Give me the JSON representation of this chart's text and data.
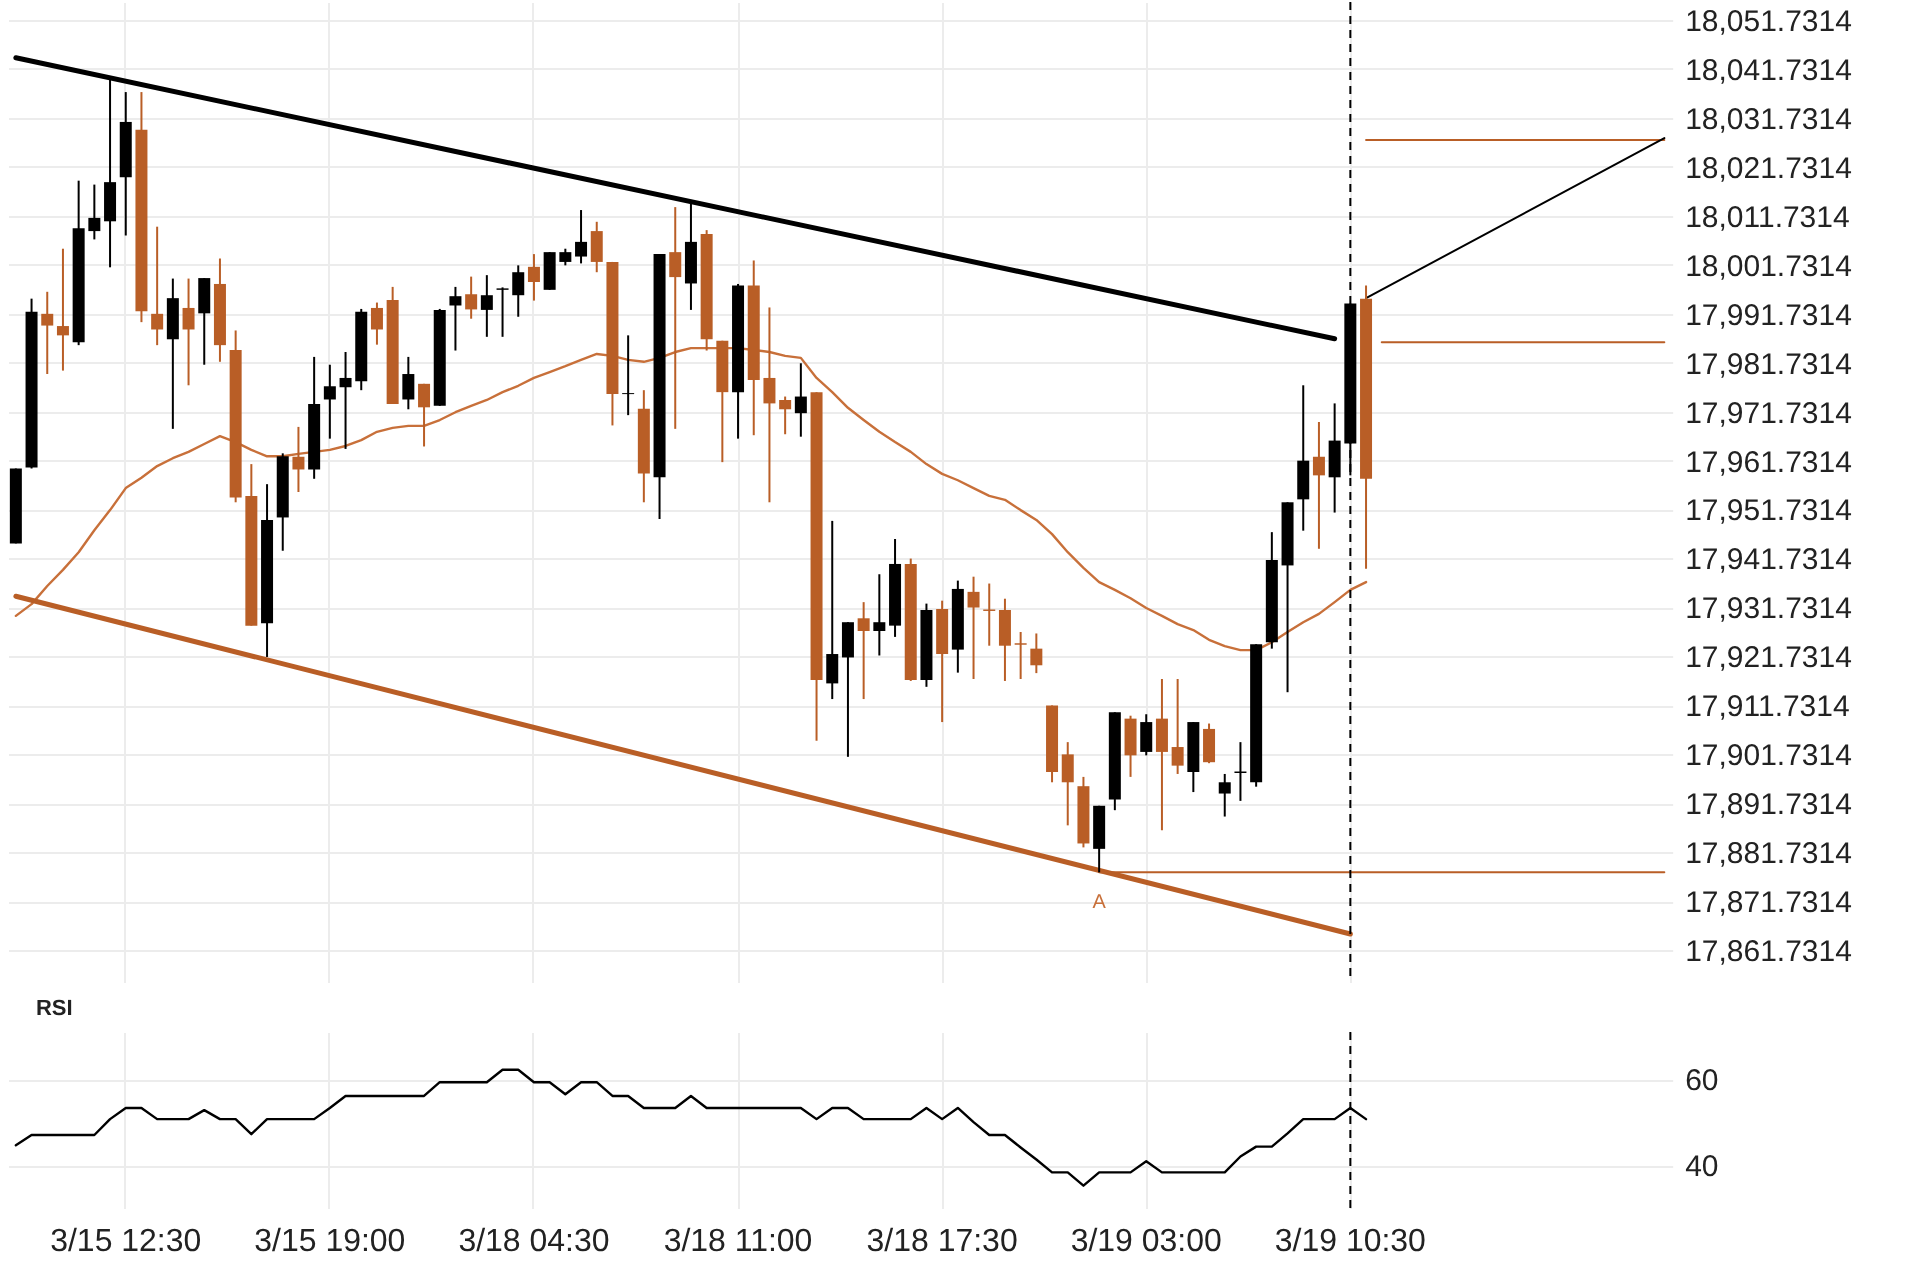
{
  "chart_data": [
    {
      "type": "candlestick",
      "categories": [
        null,
        null,
        null,
        null,
        null,
        null,
        null,
        "3/15 12:30",
        null,
        null,
        null,
        null,
        null,
        null,
        null,
        null,
        null,
        null,
        null,
        null,
        "3/15 19:00",
        null,
        null,
        null,
        null,
        null,
        null,
        null,
        null,
        null,
        null,
        null,
        null,
        "3/18 04:30",
        null,
        null,
        null,
        null,
        null,
        null,
        null,
        null,
        null,
        null,
        null,
        null,
        "3/18 11:00",
        null,
        null,
        null,
        null,
        null,
        null,
        null,
        null,
        null,
        null,
        null,
        null,
        "3/18 17:30",
        null,
        null,
        null,
        null,
        null,
        null,
        null,
        null,
        null,
        null,
        null,
        null,
        "3/19 03:00",
        null,
        null,
        null,
        null,
        null,
        null,
        null,
        null,
        null,
        null,
        null,
        null,
        "3/19 10:30",
        null,
        null,
        null,
        null,
        null,
        null,
        null,
        null,
        null,
        null,
        null,
        null,
        null,
        null,
        null,
        null,
        null,
        null,
        null,
        null
      ],
      "ohlc": [
        [
          17944.8,
          17960.1,
          17944.8,
          17960.1
        ],
        [
          17960.3,
          17994.8,
          17960.1,
          17992.1
        ],
        [
          17991.7,
          17996.2,
          17979.4,
          17989.3
        ],
        [
          17989.2,
          18005.0,
          17980.1,
          17987.3
        ],
        [
          17985.9,
          18018.9,
          17985.3,
          18009.2
        ],
        [
          18008.6,
          18018.1,
          18006.9,
          18011.3
        ],
        [
          18010.6,
          18040.2,
          18001.2,
          18018.6
        ],
        [
          18019.6,
          18037.0,
          18007.7,
          18030.9
        ],
        [
          18029.3,
          18037.0,
          17990.0,
          17992.2
        ],
        [
          17991.7,
          18009.5,
          17985.3,
          17988.5
        ],
        [
          17986.5,
          17998.9,
          17968.2,
          17994.9
        ],
        [
          17992.9,
          17998.9,
          17977.1,
          17988.5
        ],
        [
          17991.8,
          17999.0,
          17981.3,
          17999.0
        ],
        [
          17997.8,
          18003.0,
          17981.9,
          17985.3
        ],
        [
          17984.3,
          17988.3,
          17953.2,
          17954.2
        ],
        [
          17954.5,
          17961.0,
          17928.0,
          17928.0
        ],
        [
          17928.5,
          17956.9,
          17921.6,
          17949.6
        ],
        [
          17950.1,
          17963.2,
          17943.3,
          17962.6
        ],
        [
          17962.5,
          17968.6,
          17955.3,
          17959.9
        ],
        [
          17959.9,
          17982.9,
          17958.0,
          17973.3
        ],
        [
          17974.2,
          17981.3,
          17966.2,
          17976.9
        ],
        [
          17976.7,
          17983.9,
          17964.1,
          17978.6
        ],
        [
          17977.9,
          17992.7,
          17976.1,
          17992.1
        ],
        [
          17992.9,
          17994.0,
          17985.4,
          17988.5
        ],
        [
          17994.5,
          17997.2,
          17973.3,
          17973.3
        ],
        [
          17974.2,
          17982.9,
          17972.2,
          17979.4
        ],
        [
          17977.4,
          17977.4,
          17964.6,
          17972.6
        ],
        [
          17972.9,
          17992.7,
          17972.9,
          17992.5
        ],
        [
          17993.4,
          17997.2,
          17984.2,
          17995.3
        ],
        [
          17995.7,
          17999.3,
          17990.7,
          17992.6
        ],
        [
          17992.5,
          17999.6,
          17987.0,
          17995.5
        ],
        [
          17996.6,
          17997.1,
          17987.0,
          17996.9
        ],
        [
          17995.5,
          18001.6,
          17991.1,
          18000.2
        ],
        [
          18001.3,
          18003.9,
          17994.4,
          17998.2
        ],
        [
          17996.6,
          18004.3,
          17996.6,
          18004.3
        ],
        [
          18002.3,
          18005.0,
          18001.6,
          18004.3
        ],
        [
          18003.4,
          18012.9,
          18002.0,
          18006.4
        ],
        [
          18008.6,
          18010.5,
          18000.2,
          18002.3
        ],
        [
          18002.3,
          18002.3,
          17968.9,
          17975.3
        ],
        [
          17975.3,
          17987.3,
          17971.0,
          17975.5
        ],
        [
          17972.3,
          17976.1,
          17953.2,
          17959.1
        ],
        [
          17958.3,
          18003.9,
          17949.8,
          18003.9
        ],
        [
          18004.3,
          18013.5,
          17968.2,
          17999.2
        ],
        [
          17997.9,
          18014.5,
          17992.5,
          18006.4
        ],
        [
          18008.0,
          18008.8,
          17984.2,
          17986.5
        ],
        [
          17986.2,
          17986.2,
          17961.4,
          17975.7
        ],
        [
          17975.7,
          17997.8,
          17966.2,
          17997.5
        ],
        [
          17997.5,
          18002.6,
          17966.9,
          17978.2
        ],
        [
          17978.6,
          17993.0,
          17953.2,
          17973.4
        ],
        [
          17974.1,
          17974.8,
          17967.1,
          17972.2
        ],
        [
          17971.4,
          17981.6,
          17966.6,
          17974.8
        ],
        [
          17975.7,
          17975.7,
          17904.5,
          17916.9
        ],
        [
          17916.2,
          17949.4,
          17913.0,
          17922.2
        ],
        [
          17921.5,
          17928.7,
          17901.2,
          17928.7
        ],
        [
          17929.5,
          17932.8,
          17913.0,
          17926.9
        ],
        [
          17926.9,
          17938.5,
          17921.9,
          17928.7
        ],
        [
          17928.0,
          17945.7,
          17925.7,
          17940.6
        ],
        [
          17940.6,
          17941.7,
          17916.7,
          17916.9
        ],
        [
          17916.9,
          17932.5,
          17915.5,
          17931.2
        ],
        [
          17931.4,
          17933.1,
          17908.3,
          17922.2
        ],
        [
          17923.1,
          17937.2,
          17918.4,
          17935.5
        ],
        [
          17934.9,
          17938.0,
          17917.1,
          17931.7
        ],
        [
          17931.3,
          17936.6,
          17923.9,
          17931.0
        ],
        [
          17931.2,
          17933.5,
          17916.7,
          17923.9
        ],
        [
          17924.4,
          17926.7,
          17917.1,
          17924.1
        ],
        [
          17923.3,
          17926.4,
          17918.3,
          17919.9
        ],
        [
          17911.7,
          17911.7,
          17896.0,
          17898.1
        ],
        [
          17901.7,
          17904.2,
          17887.2,
          17896.0
        ],
        [
          17895.2,
          17897.1,
          17882.7,
          17883.5
        ],
        [
          17882.4,
          17891.2,
          17877.6,
          17891.2
        ],
        [
          17892.5,
          17910.3,
          17890.3,
          17910.3
        ],
        [
          17909.0,
          17909.6,
          17897.1,
          17901.5
        ],
        [
          17902.2,
          17909.9,
          17901.5,
          17908.3
        ],
        [
          17909.0,
          17917.1,
          17886.2,
          17902.2
        ],
        [
          17903.2,
          17917.1,
          17897.7,
          17899.4
        ],
        [
          17898.1,
          17908.3,
          17894.0,
          17908.3
        ],
        [
          17906.9,
          17908.0,
          17899.9,
          17900.1
        ],
        [
          17893.7,
          17897.7,
          17889.0,
          17896.0
        ],
        [
          17897.9,
          17904.2,
          17892.2,
          17898.2
        ],
        [
          17896.0,
          17924.2,
          17895.1,
          17924.2
        ],
        [
          17924.6,
          17947.1,
          17923.3,
          17941.4
        ],
        [
          17940.3,
          17953.2,
          17914.4,
          17953.2
        ],
        [
          17953.8,
          17977.1,
          17947.4,
          17961.7
        ],
        [
          17962.5,
          17969.6,
          17943.7,
          17958.7
        ],
        [
          17958.3,
          17973.4,
          17951.1,
          17965.8
        ],
        [
          17965.2,
          17993.8,
          17958.7,
          17993.8
        ],
        [
          17994.8,
          17997.5,
          17939.6,
          17958.0
        ],
        null,
        null,
        null,
        null,
        null,
        null,
        null,
        null,
        null,
        null,
        null,
        null,
        null,
        null,
        null,
        null,
        null,
        null,
        null
      ],
      "colors": [
        "#000000",
        "#000000",
        "#b95e26",
        "#b95e26",
        "#000000",
        "#000000",
        "#000000",
        "#000000",
        "#b95e26",
        "#b95e26",
        "#000000",
        "#b95e26",
        "#000000",
        "#b95e26",
        "#b95e26",
        "#b95e26",
        "#000000",
        "#000000",
        "#b95e26",
        "#000000",
        "#000000",
        "#000000",
        "#000000",
        "#b95e26",
        "#b95e26",
        "#000000",
        "#b95e26",
        "#000000",
        "#000000",
        "#b95e26",
        "#000000",
        "#000000",
        "#000000",
        "#b95e26",
        "#000000",
        "#000000",
        "#000000",
        "#b95e26",
        "#b95e26",
        "#000000",
        "#b95e26",
        "#000000",
        "#b95e26",
        "#000000",
        "#b95e26",
        "#b95e26",
        "#000000",
        "#b95e26",
        "#b95e26",
        "#b95e26",
        "#000000",
        "#b95e26",
        "#000000",
        "#000000",
        "#b95e26",
        "#000000",
        "#000000",
        "#b95e26",
        "#000000",
        "#b95e26",
        "#000000",
        "#b95e26",
        "#b95e26",
        "#b95e26",
        "#b95e26",
        "#b95e26",
        "#b95e26",
        "#b95e26",
        "#b95e26",
        "#000000",
        "#000000",
        "#b95e26",
        "#000000",
        "#b95e26",
        "#b95e26",
        "#000000",
        "#b95e26",
        "#000000",
        "#000000",
        "#000000",
        "#000000",
        "#000000",
        "#000000",
        "#b95e26",
        "#000000",
        "#000000",
        "#b95e26",
        null,
        null,
        null,
        null,
        null,
        null,
        null,
        null,
        null,
        null,
        null,
        null,
        null,
        null,
        null,
        null,
        null,
        null,
        null
      ],
      "series": [
        {
          "type": "line",
          "color": "#c8703a",
          "values": [
            17930.0,
            17932.4,
            17936.1,
            17939.4,
            17943.0,
            17947.5,
            17951.6,
            17956.1,
            17958.2,
            17960.6,
            17962.2,
            17963.5,
            17965.1,
            17966.7,
            17965.5,
            17963.9,
            17962.6,
            17962.6,
            17963.1,
            17963.5,
            17963.9,
            17964.7,
            17965.9,
            17967.6,
            17968.4,
            17968.8,
            17968.8,
            17970.0,
            17971.6,
            17972.9,
            17974.1,
            17975.7,
            17977.0,
            17978.6,
            17979.8,
            17981.0,
            17982.3,
            17983.5,
            17983.1,
            17982.3,
            17981.9,
            17982.7,
            17983.9,
            17984.7,
            17984.7,
            17984.7,
            17984.7,
            17984.3,
            17983.9,
            17983.1,
            17982.7,
            17978.6,
            17975.7,
            17972.5,
            17970.0,
            17967.6,
            17965.5,
            17963.5,
            17961.0,
            17959.0,
            17957.7,
            17956.1,
            17954.5,
            17953.7,
            17951.6,
            17949.6,
            17946.7,
            17943.0,
            17939.8,
            17936.9,
            17935.3,
            17933.6,
            17931.6,
            17930.0,
            17928.3,
            17927.1,
            17925.1,
            17923.8,
            17923.0,
            17923.0,
            17924.6,
            17926.7,
            17928.7,
            17930.4,
            17932.8,
            17935.3,
            17936.9,
            null,
            null,
            null,
            null,
            null,
            null,
            null,
            null,
            null,
            null,
            null,
            null,
            null,
            null,
            null,
            null,
            null,
            null,
            null
          ]
        },
        {
          "type": "line",
          "color": "#000000",
          "values": [
            18044.0,
            null,
            null,
            null,
            null,
            null,
            null,
            null,
            null,
            null,
            null,
            null,
            null,
            null,
            null,
            null,
            null,
            null,
            null,
            null,
            null,
            null,
            null,
            null,
            null,
            null,
            null,
            null,
            null,
            null,
            null,
            null,
            null,
            null,
            null,
            null,
            null,
            null,
            null,
            null,
            null,
            null,
            null,
            null,
            null,
            null,
            null,
            null,
            null,
            null,
            null,
            null,
            null,
            null,
            null,
            null,
            null,
            null,
            null,
            null,
            null,
            null,
            null,
            null,
            null,
            null,
            null,
            null,
            null,
            null,
            null,
            null,
            null,
            null,
            null,
            null,
            null,
            null,
            null,
            null,
            null,
            null,
            null,
            null,
            17986.6,
            null,
            null,
            null,
            null,
            null,
            null,
            null,
            null,
            null,
            null,
            null,
            null,
            null,
            null,
            null,
            null,
            null,
            null,
            null,
            null,
            null
          ]
        },
        {
          "type": "line",
          "color": "#b95e26",
          "values": [
            17934.0,
            null,
            null,
            null,
            null,
            null,
            null,
            null,
            null,
            null,
            null,
            null,
            null,
            null,
            null,
            null,
            null,
            null,
            null,
            null,
            null,
            null,
            null,
            null,
            null,
            null,
            null,
            null,
            null,
            null,
            null,
            null,
            null,
            null,
            null,
            null,
            null,
            null,
            null,
            null,
            null,
            null,
            null,
            null,
            null,
            null,
            null,
            null,
            null,
            null,
            null,
            null,
            null,
            null,
            null,
            null,
            null,
            null,
            null,
            null,
            null,
            null,
            null,
            null,
            null,
            null,
            null,
            null,
            null,
            null,
            null,
            null,
            null,
            null,
            null,
            null,
            null,
            null,
            null,
            null,
            null,
            null,
            null,
            null,
            null,
            17865.0,
            null,
            null,
            null,
            null,
            null,
            null,
            null,
            null,
            null,
            null,
            null,
            null,
            null,
            null,
            null,
            null,
            null,
            null,
            null,
            null
          ]
        },
        {
          "type": "line",
          "color": "#b95e26",
          "values": [
            null,
            null,
            null,
            null,
            null,
            null,
            null,
            null,
            null,
            null,
            null,
            null,
            null,
            null,
            null,
            null,
            null,
            null,
            null,
            null,
            null,
            null,
            null,
            null,
            null,
            null,
            null,
            null,
            null,
            null,
            null,
            null,
            null,
            null,
            null,
            null,
            null,
            null,
            null,
            null,
            null,
            null,
            null,
            null,
            null,
            null,
            null,
            null,
            null,
            null,
            null,
            null,
            null,
            null,
            null,
            null,
            null,
            null,
            null,
            null,
            null,
            null,
            null,
            null,
            null,
            null,
            null,
            null,
            null,
            null,
            null,
            null,
            null,
            null,
            null,
            null,
            null,
            null,
            null,
            null,
            null,
            null,
            null,
            null,
            null,
            null,
            null,
            17985.9,
            null,
            null,
            null,
            null,
            null,
            null,
            null,
            null,
            null,
            null,
            null,
            null,
            null,
            null,
            null,
            null,
            null,
            17985.9
          ]
        },
        {
          "type": "line",
          "color": "#b95e26",
          "values": [
            null,
            null,
            null,
            null,
            null,
            null,
            null,
            null,
            null,
            null,
            null,
            null,
            null,
            null,
            null,
            null,
            null,
            null,
            null,
            null,
            null,
            null,
            null,
            null,
            null,
            null,
            null,
            null,
            null,
            null,
            null,
            null,
            null,
            null,
            null,
            null,
            null,
            null,
            null,
            null,
            null,
            null,
            null,
            null,
            null,
            null,
            null,
            null,
            null,
            null,
            null,
            null,
            null,
            null,
            null,
            null,
            null,
            null,
            null,
            null,
            null,
            null,
            null,
            null,
            null,
            null,
            null,
            null,
            null,
            null,
            null,
            null,
            null,
            null,
            null,
            null,
            null,
            null,
            null,
            null,
            null,
            null,
            null,
            null,
            null,
            null,
            18027.2,
            null,
            null,
            null,
            null,
            null,
            null,
            null,
            null,
            null,
            null,
            null,
            null,
            null,
            null,
            null,
            null,
            null,
            null,
            18027.2
          ]
        },
        {
          "type": "line",
          "color": "#b95e26",
          "values": [
            null,
            null,
            null,
            null,
            null,
            null,
            null,
            null,
            null,
            null,
            null,
            null,
            null,
            null,
            null,
            null,
            null,
            null,
            null,
            null,
            null,
            null,
            null,
            null,
            null,
            null,
            null,
            null,
            null,
            null,
            null,
            null,
            null,
            null,
            null,
            null,
            null,
            null,
            null,
            null,
            null,
            null,
            null,
            null,
            null,
            null,
            null,
            null,
            null,
            null,
            null,
            null,
            null,
            null,
            null,
            null,
            null,
            null,
            null,
            null,
            null,
            null,
            null,
            null,
            null,
            null,
            null,
            null,
            null,
            17877.6,
            null,
            null,
            null,
            null,
            null,
            null,
            null,
            null,
            null,
            null,
            null,
            null,
            null,
            null,
            null,
            null,
            null,
            null,
            null,
            null,
            null,
            null,
            null,
            null,
            null,
            null,
            null,
            null,
            null,
            null,
            null,
            null,
            null,
            null,
            null,
            17877.6
          ]
        },
        {
          "type": "line",
          "color": "#000000",
          "values": [
            null,
            null,
            null,
            null,
            null,
            null,
            null,
            null,
            null,
            null,
            null,
            null,
            null,
            null,
            null,
            null,
            null,
            null,
            null,
            null,
            null,
            null,
            null,
            null,
            null,
            null,
            null,
            null,
            null,
            null,
            null,
            null,
            null,
            null,
            null,
            null,
            null,
            null,
            null,
            null,
            null,
            null,
            null,
            null,
            null,
            null,
            null,
            null,
            null,
            null,
            null,
            null,
            null,
            null,
            null,
            null,
            null,
            null,
            null,
            null,
            null,
            null,
            null,
            null,
            null,
            null,
            null,
            null,
            null,
            null,
            null,
            null,
            null,
            null,
            null,
            null,
            null,
            null,
            null,
            null,
            null,
            null,
            null,
            null,
            null,
            null,
            17994.9,
            null,
            null,
            null,
            null,
            null,
            null,
            null,
            null,
            null,
            null,
            null,
            null,
            null,
            null,
            null,
            null,
            null,
            null,
            18027.6
          ]
        }
      ],
      "ylim": [
        17855.2,
        18055.4
      ],
      "yticks": [
        {
          "value": 17861.7314,
          "label": "17,861.7314"
        },
        {
          "value": 17871.7314,
          "label": "17,871.7314"
        },
        {
          "value": 17881.7314,
          "label": "17,881.7314"
        },
        {
          "value": 17891.7314,
          "label": "17,891.7314"
        },
        {
          "value": 17901.7314,
          "label": "17,901.7314"
        },
        {
          "value": 17911.7314,
          "label": "17,911.7314"
        },
        {
          "value": 17921.7314,
          "label": "17,921.7314"
        },
        {
          "value": 17931.7314,
          "label": "17,931.7314"
        },
        {
          "value": 17941.7314,
          "label": "17,941.7314"
        },
        {
          "value": 17951.7314,
          "label": "17,951.7314"
        },
        {
          "value": 17961.7314,
          "label": "17,961.7314"
        },
        {
          "value": 17971.7314,
          "label": "17,971.7314"
        },
        {
          "value": 17981.7314,
          "label": "17,981.7314"
        },
        {
          "value": 17991.7314,
          "label": "17,991.7314"
        },
        {
          "value": 18001.7314,
          "label": "18,001.7314"
        },
        {
          "value": 18011.7314,
          "label": "18,011.7314"
        },
        {
          "value": 18021.7314,
          "label": "18,021.7314"
        },
        {
          "value": 18031.7314,
          "label": "18,031.7314"
        },
        {
          "value": 18041.7314,
          "label": "18,041.7314"
        },
        {
          "value": 18051.7314,
          "label": "18,051.7314"
        }
      ],
      "grid": true,
      "tick_labels": "y",
      "ref_lines": [
        {
          "axis": "x",
          "value": "3/19 10:30",
          "color": "#000000",
          "line_style": "dashed"
        }
      ],
      "annotations": [
        "A"
      ]
    },
    {
      "type": "line",
      "title": "RSI",
      "categories": [
        null,
        null,
        null,
        null,
        null,
        null,
        null,
        "3/15 12:30",
        null,
        null,
        null,
        null,
        null,
        null,
        null,
        null,
        null,
        null,
        null,
        null,
        "3/15 19:00",
        null,
        null,
        null,
        null,
        null,
        null,
        null,
        null,
        null,
        null,
        null,
        null,
        "3/18 04:30",
        null,
        null,
        null,
        null,
        null,
        null,
        null,
        null,
        null,
        null,
        null,
        null,
        "3/18 11:00",
        null,
        null,
        null,
        null,
        null,
        null,
        null,
        null,
        null,
        null,
        null,
        null,
        "3/18 17:30",
        null,
        null,
        null,
        null,
        null,
        null,
        null,
        null,
        null,
        null,
        null,
        null,
        "3/19 03:00",
        null,
        null,
        null,
        null,
        null,
        null,
        null,
        null,
        null,
        null,
        null,
        null,
        "3/19 10:30",
        null,
        null,
        null,
        null,
        null,
        null,
        null,
        null,
        null,
        null,
        null,
        null,
        null,
        null,
        null,
        null,
        null,
        null,
        null,
        null
      ],
      "series": [
        {
          "color": "#000000",
          "values": [
            44.6,
            47.0,
            47.0,
            47.0,
            47.0,
            47.0,
            50.7,
            53.3,
            53.3,
            50.7,
            50.7,
            50.7,
            52.8,
            50.7,
            50.7,
            47.2,
            50.7,
            50.7,
            50.7,
            50.7,
            53.3,
            56.1,
            56.1,
            56.1,
            56.1,
            56.1,
            56.1,
            59.3,
            59.3,
            59.3,
            59.3,
            62.2,
            62.2,
            59.3,
            59.3,
            56.5,
            59.3,
            59.3,
            56.1,
            56.1,
            53.3,
            53.3,
            53.3,
            56.1,
            53.3,
            53.3,
            53.3,
            53.3,
            53.3,
            53.3,
            53.3,
            50.7,
            53.3,
            53.3,
            50.7,
            50.7,
            50.7,
            50.7,
            53.3,
            50.7,
            53.3,
            50.0,
            47.0,
            47.0,
            44.1,
            41.3,
            38.3,
            38.3,
            35.2,
            38.3,
            38.3,
            38.3,
            40.9,
            38.3,
            38.3,
            38.3,
            38.3,
            38.3,
            42.0,
            44.3,
            44.3,
            47.4,
            50.7,
            50.7,
            50.7,
            53.3,
            50.7,
            null,
            null,
            null,
            null,
            null,
            null,
            null,
            null,
            null,
            null,
            null,
            null,
            null,
            null,
            null,
            null,
            null,
            null,
            null
          ]
        }
      ],
      "ylim": [
        30,
        71
      ],
      "yticks": [
        40,
        60
      ],
      "grid": true,
      "ref_lines": [
        {
          "axis": "x",
          "value": "3/19 10:30",
          "color": "#000000",
          "line_style": "dashed"
        }
      ]
    }
  ]
}
